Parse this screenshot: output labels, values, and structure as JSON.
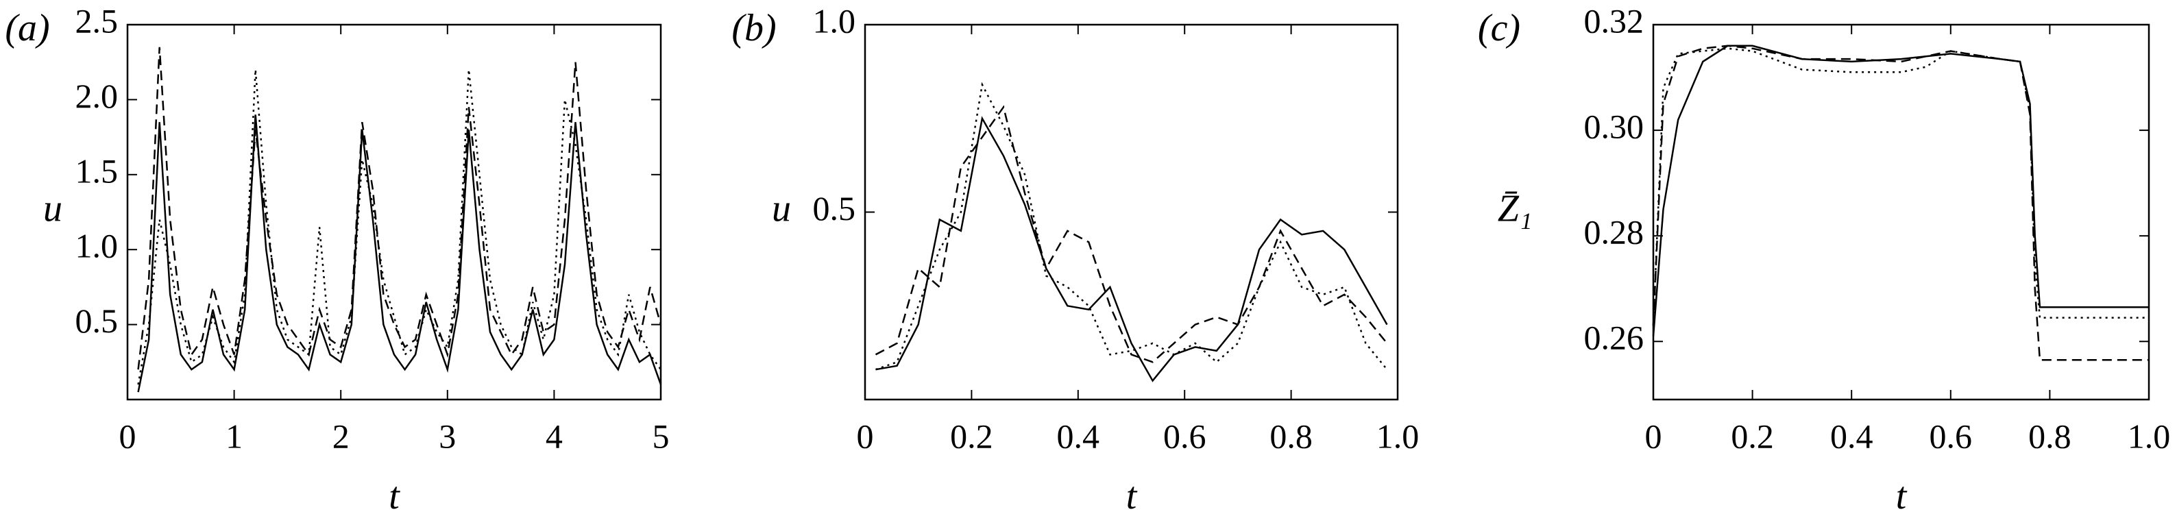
{
  "chart_data": [
    {
      "type": "line",
      "panel_label": "(a)",
      "ylabel": "u",
      "xlabel": "t",
      "x": [
        0.1,
        0.2,
        0.3,
        0.4,
        0.5,
        0.6,
        0.7,
        0.8,
        0.9,
        1.0,
        1.1,
        1.2,
        1.3,
        1.4,
        1.5,
        1.6,
        1.7,
        1.8,
        1.9,
        2.0,
        2.1,
        2.2,
        2.3,
        2.4,
        2.5,
        2.6,
        2.7,
        2.8,
        2.9,
        3.0,
        3.1,
        3.2,
        3.3,
        3.4,
        3.5,
        3.6,
        3.7,
        3.8,
        3.9,
        4.0,
        4.1,
        4.2,
        4.3,
        4.4,
        4.5,
        4.6,
        4.7,
        4.8,
        4.9,
        5.0
      ],
      "series": [
        {
          "color": "#000000",
          "style": "solid",
          "values": [
            0.05,
            0.4,
            1.85,
            0.7,
            0.3,
            0.2,
            0.25,
            0.6,
            0.3,
            0.2,
            0.6,
            1.9,
            1.0,
            0.5,
            0.35,
            0.3,
            0.2,
            0.5,
            0.3,
            0.25,
            0.5,
            1.8,
            1.2,
            0.5,
            0.3,
            0.2,
            0.3,
            0.65,
            0.4,
            0.2,
            0.6,
            1.8,
            1.0,
            0.45,
            0.3,
            0.2,
            0.3,
            0.6,
            0.3,
            0.4,
            0.9,
            1.85,
            1.1,
            0.5,
            0.3,
            0.2,
            0.4,
            0.25,
            0.3,
            0.1
          ]
        },
        {
          "color": "#000000",
          "style": "dashed",
          "values": [
            0.2,
            0.8,
            2.35,
            1.2,
            0.6,
            0.3,
            0.4,
            0.75,
            0.5,
            0.3,
            0.8,
            1.8,
            1.2,
            0.7,
            0.5,
            0.4,
            0.3,
            0.6,
            0.4,
            0.35,
            0.6,
            1.85,
            1.4,
            0.7,
            0.5,
            0.35,
            0.4,
            0.7,
            0.5,
            0.3,
            0.7,
            1.95,
            1.3,
            0.6,
            0.45,
            0.3,
            0.4,
            0.75,
            0.45,
            0.5,
            1.2,
            2.25,
            1.4,
            0.7,
            0.45,
            0.35,
            0.6,
            0.4,
            0.75,
            0.5
          ]
        },
        {
          "color": "#000000",
          "style": "dotted",
          "values": [
            0.1,
            0.5,
            1.2,
            0.9,
            0.5,
            0.25,
            0.3,
            0.55,
            0.35,
            0.25,
            0.7,
            2.2,
            1.3,
            0.6,
            0.4,
            0.35,
            0.3,
            1.15,
            0.35,
            0.3,
            0.55,
            1.6,
            1.3,
            0.8,
            0.55,
            0.3,
            0.35,
            0.6,
            0.45,
            0.35,
            0.8,
            2.2,
            1.5,
            0.8,
            0.5,
            0.35,
            0.3,
            0.65,
            0.4,
            0.7,
            2.0,
            1.7,
            1.2,
            0.6,
            0.4,
            0.3,
            0.7,
            0.45,
            0.3,
            0.2
          ]
        }
      ],
      "xlim": [
        0,
        5
      ],
      "xticks": [
        0,
        1,
        2,
        3,
        4,
        5
      ],
      "ylim": [
        0,
        2.5
      ],
      "yticks": [
        0.5,
        {
          "value": 1,
          "label": "1.0"
        },
        1.5,
        {
          "value": 2,
          "label": "2.0"
        },
        2.5
      ]
    },
    {
      "type": "line",
      "panel_label": "(b)",
      "ylabel": "u",
      "xlabel": "t",
      "x": [
        0.02,
        0.06,
        0.1,
        0.14,
        0.18,
        0.22,
        0.26,
        0.3,
        0.34,
        0.38,
        0.42,
        0.46,
        0.5,
        0.54,
        0.58,
        0.62,
        0.66,
        0.7,
        0.74,
        0.78,
        0.82,
        0.86,
        0.9,
        0.94,
        0.98
      ],
      "series": [
        {
          "color": "#000000",
          "style": "solid",
          "values": [
            0.08,
            0.09,
            0.2,
            0.48,
            0.45,
            0.75,
            0.65,
            0.52,
            0.35,
            0.25,
            0.24,
            0.3,
            0.15,
            0.05,
            0.12,
            0.14,
            0.13,
            0.2,
            0.4,
            0.48,
            0.44,
            0.45,
            0.4,
            0.3,
            0.2
          ]
        },
        {
          "color": "#000000",
          "style": "dashed",
          "values": [
            0.12,
            0.15,
            0.35,
            0.3,
            0.62,
            0.7,
            0.78,
            0.55,
            0.35,
            0.45,
            0.42,
            0.25,
            0.12,
            0.1,
            0.15,
            0.2,
            0.22,
            0.2,
            0.3,
            0.45,
            0.35,
            0.25,
            0.28,
            0.22,
            0.15
          ]
        },
        {
          "color": "#000000",
          "style": "dotted",
          "values": [
            0.08,
            0.1,
            0.25,
            0.4,
            0.5,
            0.84,
            0.73,
            0.6,
            0.33,
            0.3,
            0.25,
            0.12,
            0.13,
            0.15,
            0.12,
            0.15,
            0.1,
            0.15,
            0.3,
            0.42,
            0.3,
            0.28,
            0.3,
            0.15,
            0.08
          ]
        }
      ],
      "xlim": [
        0,
        1
      ],
      "xticks": [
        0,
        0.2,
        0.4,
        0.6,
        0.8,
        {
          "value": 1,
          "label": "1.0"
        }
      ],
      "ylim": [
        0,
        1
      ],
      "yticks": [
        0.5,
        {
          "value": 1,
          "label": "1.0"
        }
      ]
    },
    {
      "type": "line",
      "panel_label": "(c)",
      "ylabel": "Z̄₁",
      "xlabel": "t",
      "x": [
        0,
        0.02,
        0.05,
        0.1,
        0.15,
        0.2,
        0.3,
        0.4,
        0.5,
        0.55,
        0.6,
        0.7,
        0.74,
        0.76,
        0.77,
        0.78,
        1.0
      ],
      "series": [
        {
          "color": "#000000",
          "style": "solid",
          "values": [
            0.261,
            0.285,
            0.302,
            0.313,
            0.316,
            0.316,
            0.3135,
            0.313,
            0.3135,
            0.314,
            0.3145,
            0.3135,
            0.313,
            0.305,
            0.28,
            0.2665,
            0.2665
          ]
        },
        {
          "color": "#000000",
          "style": "dashed",
          "values": [
            0.263,
            0.305,
            0.314,
            0.3155,
            0.316,
            0.3155,
            0.3135,
            0.3135,
            0.313,
            0.314,
            0.315,
            0.3135,
            0.313,
            0.303,
            0.27,
            0.2565,
            0.2565
          ]
        },
        {
          "color": "#000000",
          "style": "dotted",
          "values": [
            0.263,
            0.308,
            0.3145,
            0.315,
            0.3155,
            0.315,
            0.3115,
            0.311,
            0.311,
            0.312,
            0.315,
            0.3135,
            0.313,
            0.304,
            0.275,
            0.2645,
            0.2645
          ]
        }
      ],
      "xlim": [
        0,
        1
      ],
      "xticks": [
        0,
        0.2,
        0.4,
        0.6,
        0.8,
        {
          "value": 1,
          "label": "1.0"
        }
      ],
      "ylim": [
        0.249,
        0.32
      ],
      "yticks": [
        0.26,
        0.28,
        {
          "value": 0.3,
          "label": "0.30"
        },
        0.32
      ]
    }
  ]
}
